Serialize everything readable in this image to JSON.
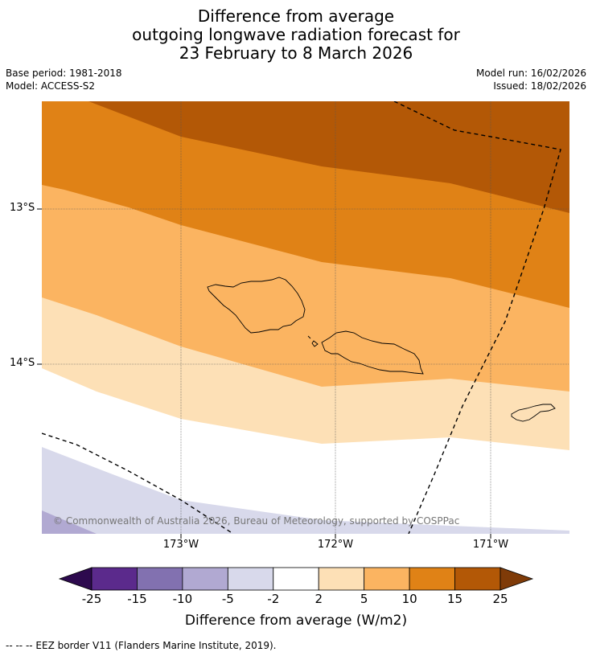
{
  "title": {
    "line1": "Difference from average",
    "line2": "outgoing longwave radiation forecast for",
    "line3": "23 February to 8 March 2026"
  },
  "meta": {
    "base_period": "Base period: 1981-2018",
    "model": "Model: ACCESS-S2",
    "model_run": "Model run: 16/02/2026",
    "issued": "Issued: 18/02/2026"
  },
  "map": {
    "lat_labels": [
      "13°S",
      "14°S"
    ],
    "lon_labels": [
      "173°W",
      "172°W",
      "171°W"
    ],
    "copyright": "© Commonwealth of Australia 2026, Bureau of Meteorology, supported by COSPPac",
    "features": [
      "samoa-islands",
      "american-samoa-islands",
      "eez-border"
    ]
  },
  "colorbar": {
    "ticks": [
      "-25",
      "-15",
      "-10",
      "-5",
      "-2",
      "2",
      "5",
      "10",
      "15",
      "25"
    ],
    "colors": [
      "#2d0a4e",
      "#5b2a8c",
      "#8271b0",
      "#b1a9d2",
      "#d8d9eb",
      "#ffffff",
      "#fde0b6",
      "#fbb461",
      "#e08216",
      "#b35806",
      "#7f3b08"
    ],
    "label": "Difference from average (W/m2)"
  },
  "footer": "--  --  -- EEZ border V11 (Flanders Marine Institute, 2019)."
}
